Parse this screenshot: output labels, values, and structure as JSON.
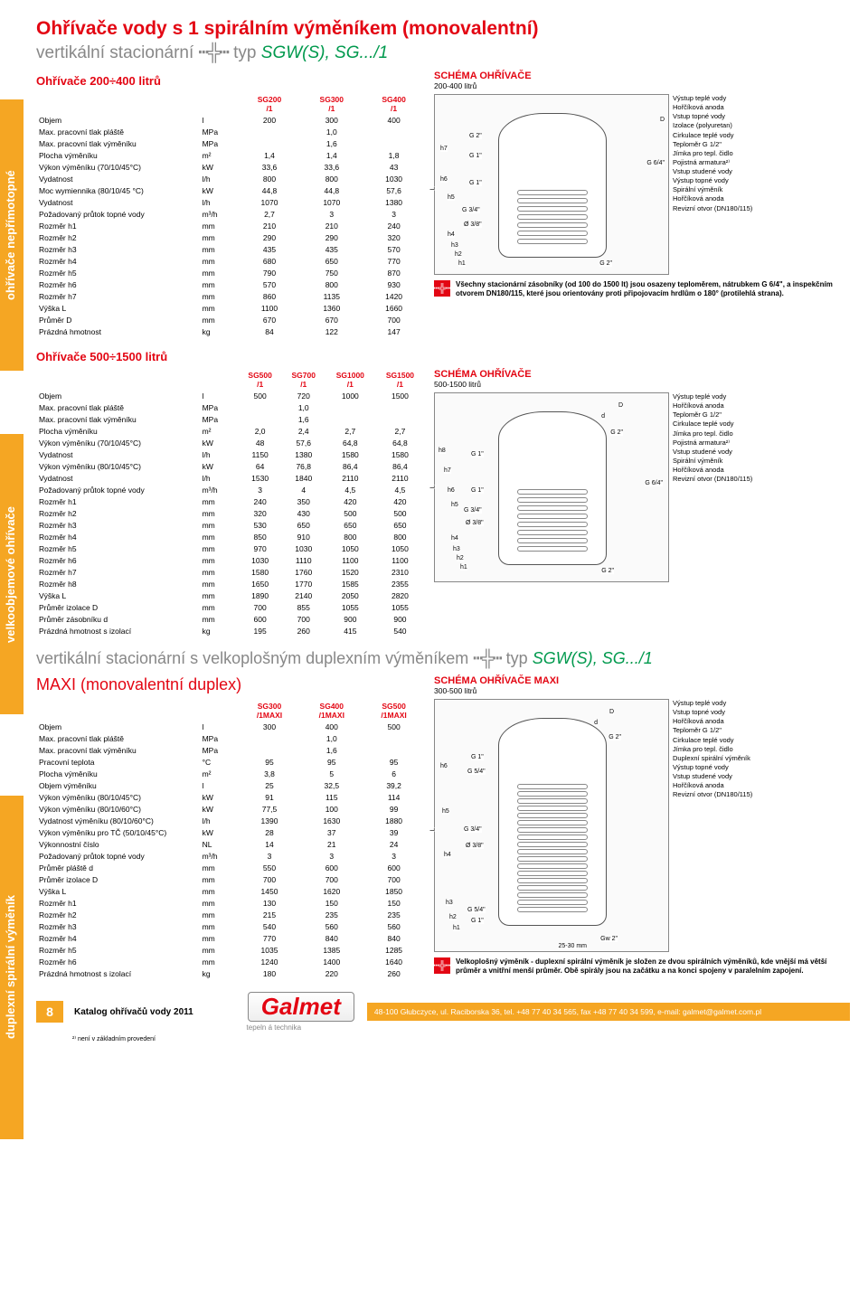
{
  "page": {
    "title": "Ohřívače vody s 1 spirálním výměníkem (monovalentní)",
    "subtitle_pre": "vertikální stacionární",
    "subtitle_type": "typ ",
    "subtitle_green": "SGW(S)",
    "subtitle_tail": ", SG.../1"
  },
  "sidetabs": {
    "tab1": "ohřívače nepřímotopné",
    "tab2": "velkoobjemové ohřívače",
    "tab3": "duplexní spirální výměník"
  },
  "section1": {
    "heading": "Ohřívače 200÷400 litrů",
    "schema_title": "SCHÉMA OHŘÍVAČE",
    "schema_sub": "200-400 litrů",
    "headers": [
      "",
      "",
      "SG200\n/1",
      "SG300\n/1",
      "SG400\n/1"
    ],
    "rows": [
      [
        "Objem",
        "l",
        "200",
        "300",
        "400"
      ],
      [
        "Max. pracovní tlak pláště",
        "MPa",
        "",
        "1,0",
        ""
      ],
      [
        "Max. pracovní tlak výměníku",
        "MPa",
        "",
        "1,6",
        ""
      ],
      [
        "Plocha výměníku",
        "m²",
        "1,4",
        "1,4",
        "1,8"
      ],
      [
        "Výkon výměníku (70/10/45°C)",
        "kW",
        "33,6",
        "33,6",
        "43"
      ],
      [
        "Vydatnost",
        "l/h",
        "800",
        "800",
        "1030"
      ],
      [
        "Moc wymiennika (80/10/45 °C)",
        "kW",
        "44,8",
        "44,8",
        "57,6"
      ],
      [
        "Vydatnost",
        "l/h",
        "1070",
        "1070",
        "1380"
      ],
      [
        "Požadovaný průtok topné vody",
        "m³/h",
        "2,7",
        "3",
        "3"
      ],
      [
        "Rozměr h1",
        "mm",
        "210",
        "210",
        "240"
      ],
      [
        "Rozměr h2",
        "mm",
        "290",
        "290",
        "320"
      ],
      [
        "Rozměr h3",
        "mm",
        "435",
        "435",
        "570"
      ],
      [
        "Rozměr h4",
        "mm",
        "680",
        "650",
        "770"
      ],
      [
        "Rozměr h5",
        "mm",
        "790",
        "750",
        "870"
      ],
      [
        "Rozměr h6",
        "mm",
        "570",
        "800",
        "930"
      ],
      [
        "Rozměr h7",
        "mm",
        "860",
        "1135",
        "1420"
      ],
      [
        "Výška L",
        "mm",
        "1100",
        "1360",
        "1660"
      ],
      [
        "Průměr D",
        "mm",
        "670",
        "670",
        "700"
      ],
      [
        "Prázdná hmotnost",
        "kg",
        "84",
        "122",
        "147"
      ]
    ],
    "ports": [
      "G 2\"",
      "G 1\"",
      "G 1\"",
      "G 3/4\"",
      "Ø 3/8\"",
      "G 2\"",
      "G 6/4\""
    ],
    "labels_right": [
      "Výstup teplé vody",
      "Hořčíková anoda",
      "Vstup topné vody",
      "Izolace (polyuretan)",
      "Cirkulace teplé vody",
      "Teploměr G 1/2\"",
      "Jímka pro tepl. čidlo",
      "Pojistná armatura²⁾",
      "Vstup studené vody",
      "Výstup topné vody",
      "Spirální výměník",
      "Hořčíková anoda",
      "Revizní otvor (DN180/115)"
    ],
    "note": "Všechny stacionární zásobníky (od 100 do 1500 lt) jsou osazeny teploměrem, nátrubkem G 6/4\", a inspekčním otvorem DN180/115, které jsou orientovány proti připojovacím hrdlům o 180° (protilehlá strana)."
  },
  "section2": {
    "heading": "Ohřívače 500÷1500 litrů",
    "schema_title": "SCHÉMA OHŘÍVAČE",
    "schema_sub": "500-1500 litrů",
    "headers": [
      "",
      "",
      "SG500\n/1",
      "SG700\n/1",
      "SG1000\n/1",
      "SG1500\n/1"
    ],
    "rows": [
      [
        "Objem",
        "l",
        "500",
        "720",
        "1000",
        "1500"
      ],
      [
        "Max. pracovní tlak pláště",
        "MPa",
        "",
        "1,0",
        "",
        ""
      ],
      [
        "Max. pracovní tlak výměníku",
        "MPa",
        "",
        "1,6",
        "",
        ""
      ],
      [
        "Plocha výměníku",
        "m²",
        "2,0",
        "2,4",
        "2,7",
        "2,7"
      ],
      [
        "Výkon výměníku (70/10/45°C)",
        "kW",
        "48",
        "57,6",
        "64,8",
        "64,8"
      ],
      [
        "Vydatnost",
        "l/h",
        "1150",
        "1380",
        "1580",
        "1580"
      ],
      [
        "Výkon výměníku (80/10/45°C)",
        "kW",
        "64",
        "76,8",
        "86,4",
        "86,4"
      ],
      [
        "Vydatnost",
        "l/h",
        "1530",
        "1840",
        "2110",
        "2110"
      ],
      [
        "Požadovaný průtok topné vody",
        "m³/h",
        "3",
        "4",
        "4,5",
        "4,5"
      ],
      [
        "Rozměr h1",
        "mm",
        "240",
        "350",
        "420",
        "420"
      ],
      [
        "Rozměr h2",
        "mm",
        "320",
        "430",
        "500",
        "500"
      ],
      [
        "Rozměr h3",
        "mm",
        "530",
        "650",
        "650",
        "650"
      ],
      [
        "Rozměr h4",
        "mm",
        "850",
        "910",
        "800",
        "800"
      ],
      [
        "Rozměr h5",
        "mm",
        "970",
        "1030",
        "1050",
        "1050"
      ],
      [
        "Rozměr h6",
        "mm",
        "1030",
        "1110",
        "1100",
        "1100"
      ],
      [
        "Rozměr h7",
        "mm",
        "1580",
        "1760",
        "1520",
        "2310"
      ],
      [
        "Rozměr h8",
        "mm",
        "1650",
        "1770",
        "1585",
        "2355"
      ],
      [
        "Výška L",
        "mm",
        "1890",
        "2140",
        "2050",
        "2820"
      ],
      [
        "Průměr izolace D",
        "mm",
        "700",
        "855",
        "1055",
        "1055"
      ],
      [
        "Průměr zásobníku d",
        "mm",
        "600",
        "700",
        "900",
        "900"
      ],
      [
        "Prázdná hmotnost s izolací",
        "kg",
        "195",
        "260",
        "415",
        "540"
      ]
    ],
    "ports": [
      "G 2\"",
      "G 1\"",
      "G 1\"",
      "G 3/4\"",
      "Ø 3/8\"",
      "G 2\"",
      "G 6/4\"",
      "D",
      "d"
    ],
    "labels_right": [
      "Výstup teplé vody",
      "Hořčíková anoda",
      "Teploměr G 1/2\"",
      "Cirkulace teplé vody",
      "Jímka pro tepl. čidlo",
      "Pojistná armatura²⁾",
      "Vstup studené vody",
      "Spirální výměník",
      "Hořčíková anoda",
      "Revizní otvor (DN180/115)"
    ]
  },
  "section3": {
    "title_pre": "vertikální stacionární s velkoplošným duplexním výměníkem",
    "title_type": "typ ",
    "title_green": "SGW(S)",
    "title_tail": ", SG.../1",
    "maxi": "MAXI (monovalentní duplex)",
    "schema_title": "SCHÉMA OHŘÍVAČE MAXI",
    "schema_sub": "300-500 litrů",
    "headers": [
      "",
      "",
      "SG300\n/1MAXI",
      "SG400\n/1MAXI",
      "SG500\n/1MAXI"
    ],
    "rows": [
      [
        "Objem",
        "l",
        "300",
        "400",
        "500"
      ],
      [
        "Max. pracovní tlak pláště",
        "MPa",
        "",
        "1,0",
        ""
      ],
      [
        "Max. pracovní tlak výměníku",
        "MPa",
        "",
        "1,6",
        ""
      ],
      [
        "Pracovní teplota",
        "°C",
        "95",
        "95",
        "95"
      ],
      [
        "Plocha výměníku",
        "m²",
        "3,8",
        "5",
        "6"
      ],
      [
        "Objem výměníku",
        "l",
        "25",
        "32,5",
        "39,2"
      ],
      [
        "Výkon výměníku (80/10/45°C)",
        "kW",
        "91",
        "115",
        "114"
      ],
      [
        "Výkon výměníku (80/10/60°C)",
        "kW",
        "77,5",
        "100",
        "99"
      ],
      [
        "Vydatnost výměníku (80/10/60°C)",
        "l/h",
        "1390",
        "1630",
        "1880"
      ],
      [
        "Výkon výměníku pro TČ (50/10/45°C)",
        "kW",
        "28",
        "37",
        "39"
      ],
      [
        "Výkonnostní číslo",
        "NL",
        "14",
        "21",
        "24"
      ],
      [
        "Požadovaný průtok topné vody",
        "m³/h",
        "3",
        "3",
        "3"
      ],
      [
        "Průměr pláště d",
        "mm",
        "550",
        "600",
        "600"
      ],
      [
        "Průměr izolace D",
        "mm",
        "700",
        "700",
        "700"
      ],
      [
        "Výška L",
        "mm",
        "1450",
        "1620",
        "1850"
      ],
      [
        "Rozměr h1",
        "mm",
        "130",
        "150",
        "150"
      ],
      [
        "Rozměr h2",
        "mm",
        "215",
        "235",
        "235"
      ],
      [
        "Rozměr h3",
        "mm",
        "540",
        "560",
        "560"
      ],
      [
        "Rozměr h4",
        "mm",
        "770",
        "840",
        "840"
      ],
      [
        "Rozměr h5",
        "mm",
        "1035",
        "1385",
        "1285"
      ],
      [
        "Rozměr h6",
        "mm",
        "1240",
        "1400",
        "1640"
      ],
      [
        "Prázdná hmotnost s izolací",
        "kg",
        "180",
        "220",
        "260"
      ]
    ],
    "ports": [
      "G 2\"",
      "G 1\"",
      "G 5/4\"",
      "G 3/4\"",
      "Ø 3/8\"",
      "G 5/4\"",
      "G 1\"",
      "Gw 2\"",
      "25-30 mm"
    ],
    "labels_right": [
      "Výstup teplé vody",
      "Vstup topné vody",
      "Hořčíková anoda",
      "Teploměr G 1/2\"",
      "Cirkulace teplé vody",
      "Jímka pro tepl. čidlo",
      "Duplexní spirální výměník",
      "Výstup topné vody",
      "Vstup studené vody",
      "Hořčíková anoda",
      "Revizní otvor (DN180/115)"
    ],
    "note": "Velkoplošný výměník - duplexní spirální výměník je složen ze dvou spirálních výměníků, kde vnější má větší průměr a vnitřní menší průměr. Obě spirály jsou na začátku a na konci spojeny v paralelním zapojení."
  },
  "footer": {
    "page": "8",
    "katalog": "Katalog ohřívačů vody 2011",
    "logo": "Galmet",
    "tagline": "tepeln á technika",
    "contact": "48-100 Głubczyce, ul. Raciborska 36, tel. +48 77 40 34 565, fax +48 77 40 34 599, e-mail: galmet@galmet.com.pl",
    "footnote": "²⁾ není v základním provedení"
  }
}
